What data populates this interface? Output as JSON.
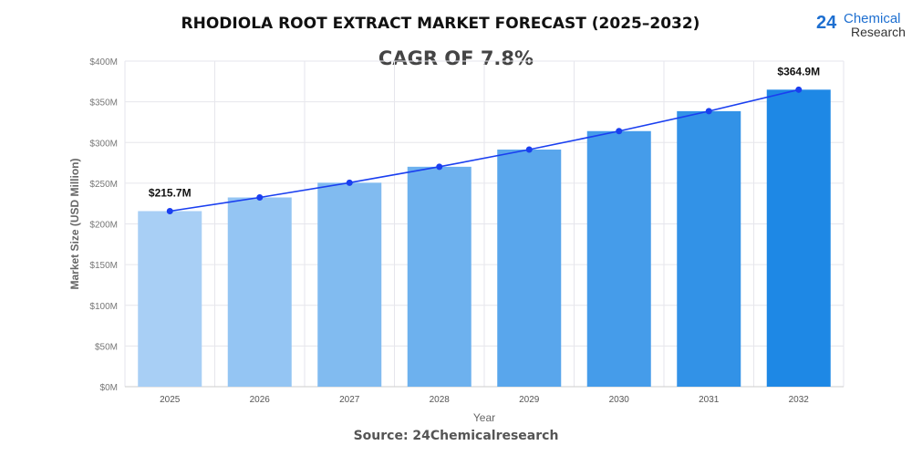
{
  "chart_data": {
    "type": "bar",
    "title": "RHODIOLA ROOT EXTRACT MARKET FORECAST (2025–2032)",
    "subtitle": "CAGR OF 7.8%",
    "xlabel": "Year",
    "ylabel": "Market Size (USD Million)",
    "categories": [
      "2025",
      "2026",
      "2027",
      "2028",
      "2029",
      "2030",
      "2031",
      "2032"
    ],
    "values": [
      215.7,
      232.5,
      250.6,
      270.2,
      291.3,
      314.0,
      338.5,
      364.9
    ],
    "data_labels": {
      "0": "$215.7M",
      "7": "$364.9M"
    },
    "yticks": [
      "$0M",
      "$50M",
      "$100M",
      "$150M",
      "$200M",
      "$250M",
      "$300M",
      "$350M",
      "$400M"
    ],
    "ylim": [
      0,
      400
    ],
    "grid": true,
    "trend_line": true,
    "colors": {
      "bar_start": "#a8cff5",
      "bar_end": "#1e88e5",
      "line": "#1a3ff0"
    }
  },
  "source": "Source: 24Chemicalresearch",
  "logo": {
    "number": "24",
    "line1": "Chemical",
    "line2": "Research"
  }
}
